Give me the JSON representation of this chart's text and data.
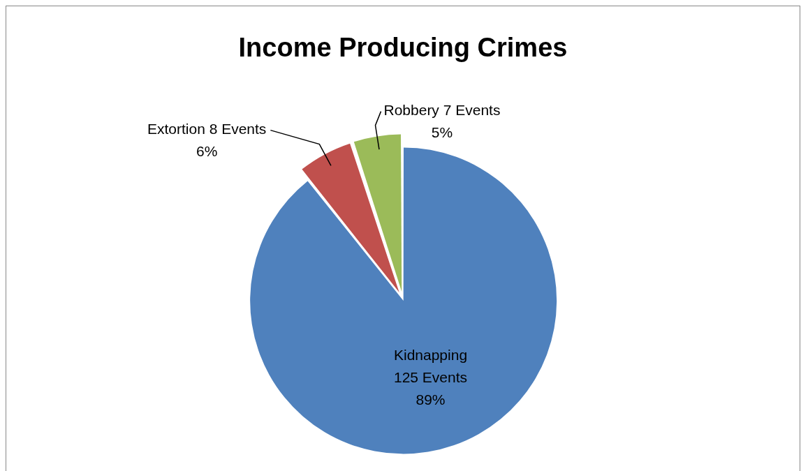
{
  "chart_data": {
    "type": "pie",
    "title": "Income Producing Crimes",
    "categories": [
      "Kidnapping",
      "Extortion",
      "Robbery"
    ],
    "values": [
      125,
      8,
      7
    ],
    "colors": [
      "#4f81bd",
      "#c0504d",
      "#9bbb59"
    ],
    "value_labels": [
      "125 Events\n89%",
      "8 Events\n6%",
      "7 Events\n5%"
    ],
    "legend": false
  }
}
